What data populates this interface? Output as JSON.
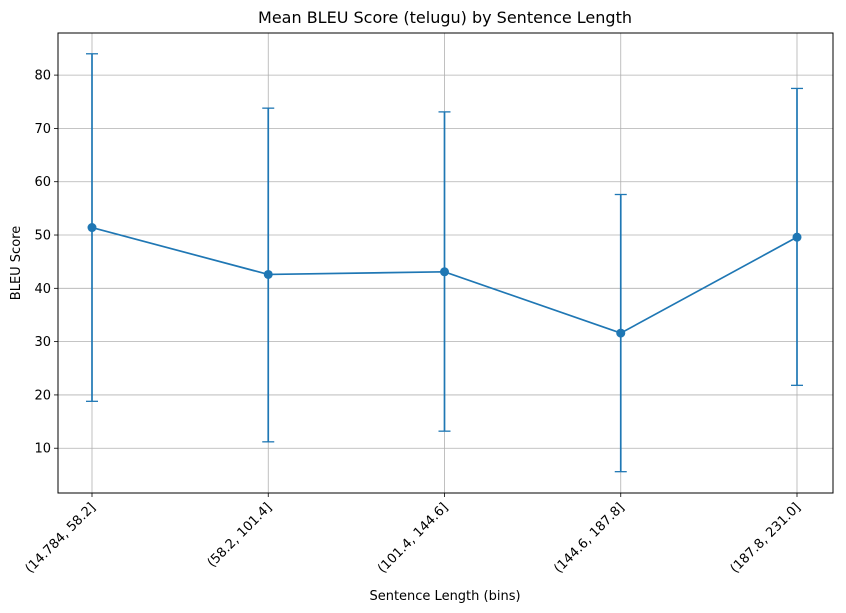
{
  "chart_data": {
    "type": "line",
    "title": "Mean BLEU Score (telugu) by Sentence Length",
    "xlabel": "Sentence Length (bins)",
    "ylabel": "BLEU Score",
    "categories": [
      "(14.784, 58.2]",
      "(58.2, 101.4]",
      "(101.4, 144.6]",
      "(144.6, 187.8]",
      "(187.8, 231.0]"
    ],
    "series": [
      {
        "values": [
          51.4,
          42.6,
          43.1,
          31.6,
          49.6
        ],
        "error_lower": [
          18.8,
          11.2,
          13.2,
          5.6,
          21.8
        ],
        "error_upper": [
          84.0,
          73.8,
          73.1,
          57.6,
          77.5
        ],
        "color": "#1f77b4"
      }
    ],
    "ylim": [
      1.6,
      87.9
    ],
    "yticks": [
      10,
      20,
      30,
      40,
      50,
      60,
      70,
      80
    ],
    "grid": true,
    "error_bars": true,
    "xtick_rotation": 45
  }
}
